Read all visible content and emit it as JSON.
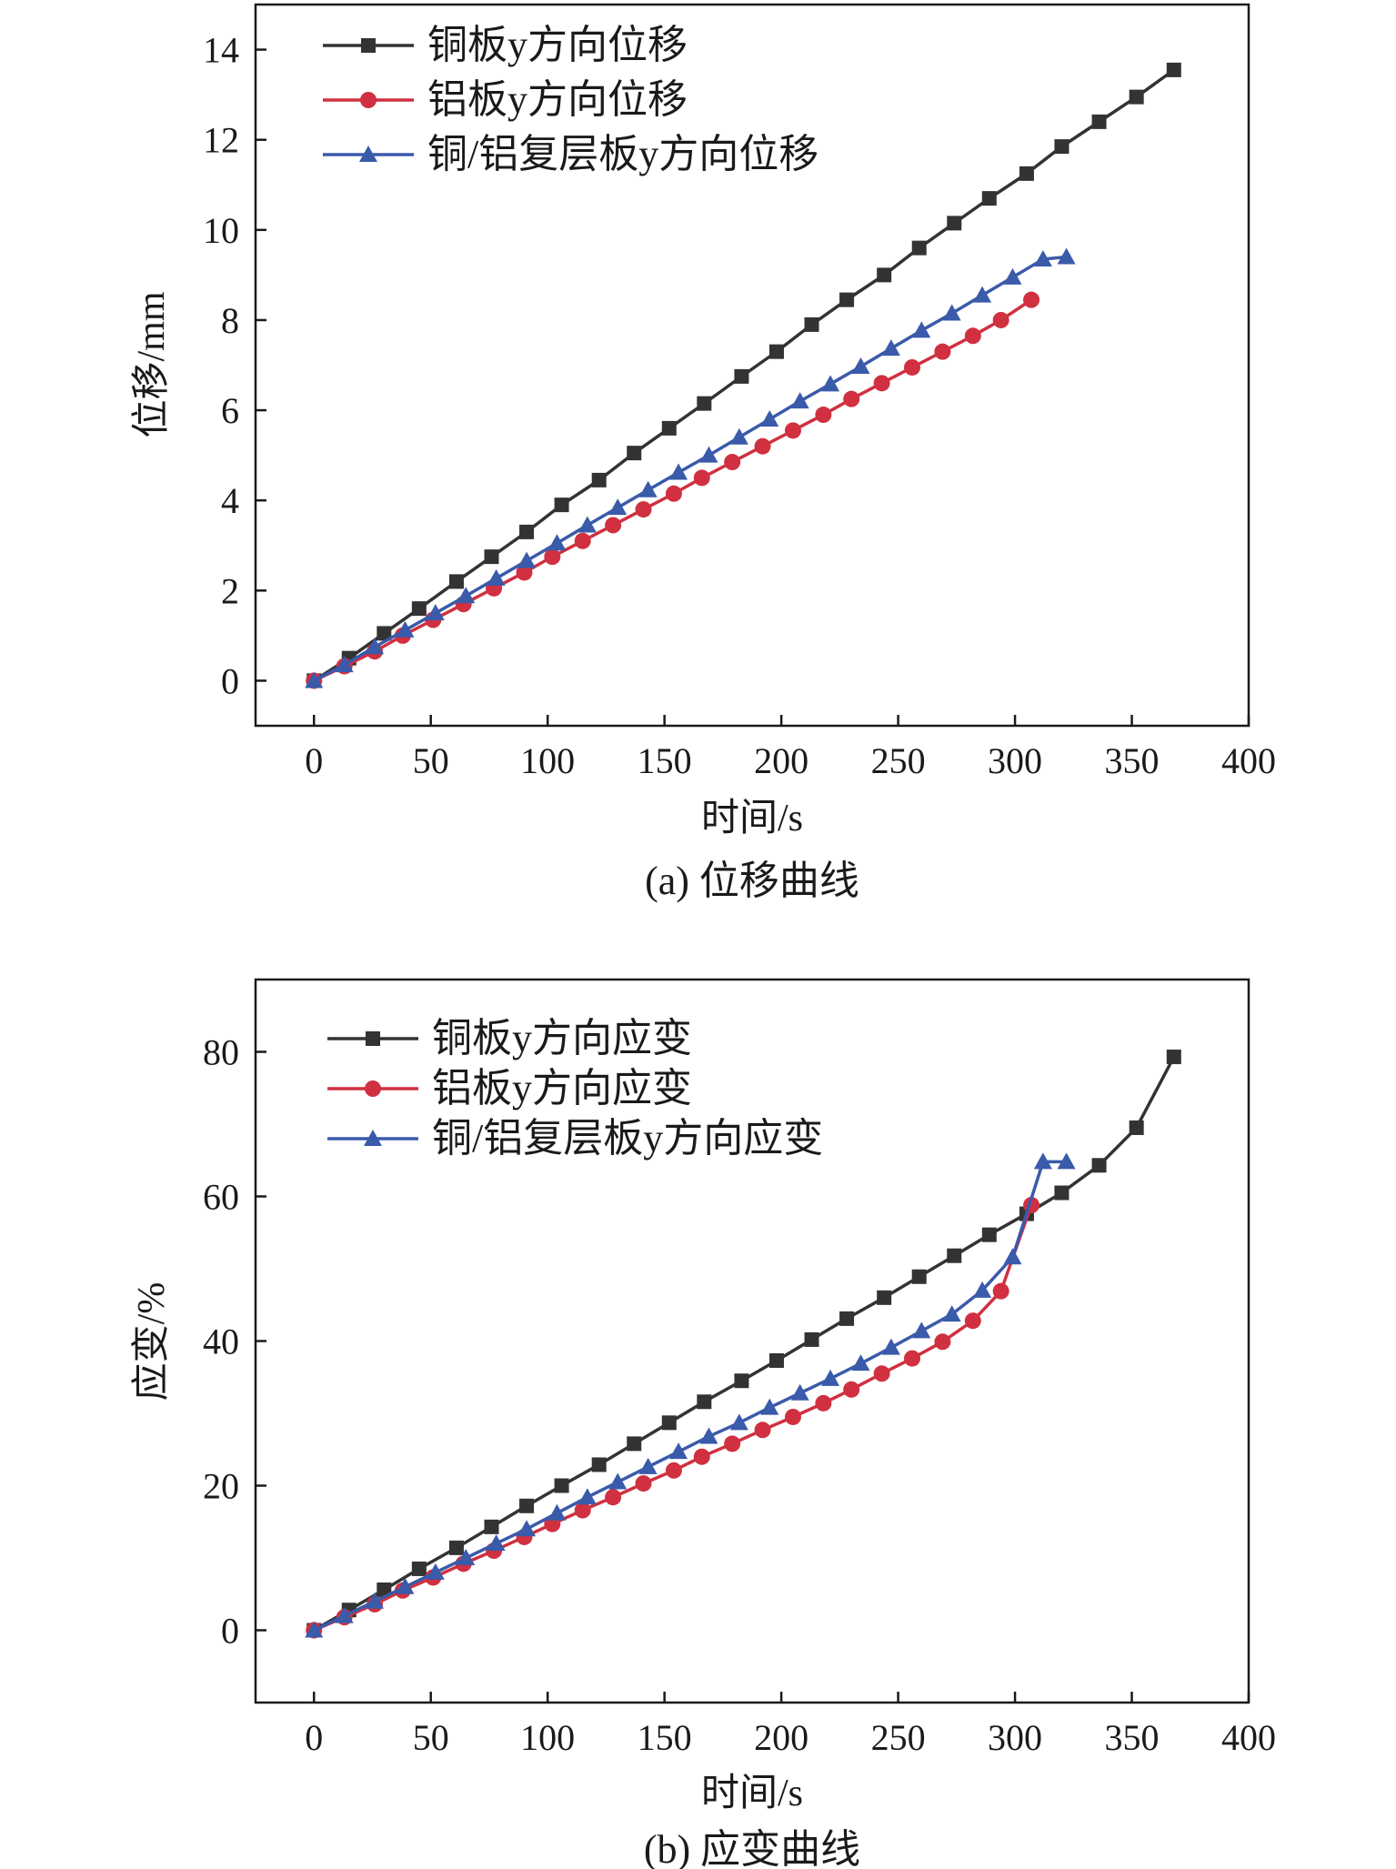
{
  "charts": [
    {
      "caption": "(a) 位移曲线",
      "chart_data": {
        "type": "line",
        "xlabel": "时间/s",
        "ylabel": "位移/mm",
        "xlim": [
          -25,
          400
        ],
        "ylim": [
          -1,
          15
        ],
        "xticks": [
          0,
          50,
          100,
          150,
          200,
          250,
          300,
          350,
          400
        ],
        "yticks": [
          0,
          2,
          4,
          6,
          8,
          10,
          12,
          14
        ],
        "grid": false,
        "legend_position": "top-left",
        "series": [
          {
            "name": "铜板y方向位移",
            "color": "#333333",
            "marker": "square",
            "x": [
              0,
              15,
              30,
              45,
              61,
              76,
              91,
              106,
              122,
              137,
              152,
              167,
              183,
              198,
              213,
              228,
              244,
              259,
              274,
              289,
              305,
              320,
              336,
              352,
              368
            ],
            "y": [
              0,
              0.5,
              1.05,
              1.6,
              2.2,
              2.75,
              3.3,
              3.9,
              4.45,
              5.05,
              5.6,
              6.15,
              6.75,
              7.3,
              7.9,
              8.45,
              9.0,
              9.6,
              10.15,
              10.7,
              11.25,
              11.85,
              12.4,
              12.95,
              13.55
            ]
          },
          {
            "name": "铝板y方向位移",
            "color": "#d03040",
            "marker": "circle",
            "x": [
              0,
              13,
              26,
              38,
              51,
              64,
              77,
              90,
              102,
              115,
              128,
              141,
              154,
              166,
              179,
              192,
              205,
              218,
              230,
              243,
              256,
              269,
              282,
              294,
              307
            ],
            "y": [
              0,
              0.32,
              0.65,
              1.0,
              1.35,
              1.7,
              2.05,
              2.4,
              2.75,
              3.1,
              3.45,
              3.8,
              4.15,
              4.5,
              4.85,
              5.2,
              5.55,
              5.9,
              6.25,
              6.6,
              6.95,
              7.3,
              7.65,
              8.0,
              8.45
            ]
          },
          {
            "name": "铜/铝复层板y方向位移",
            "color": "#3a5aaa",
            "marker": "triangle",
            "x": [
              0,
              13,
              26,
              39,
              52,
              65,
              78,
              91,
              104,
              117,
              130,
              143,
              156,
              169,
              182,
              195,
              208,
              221,
              234,
              247,
              260,
              273,
              286,
              299,
              312,
              322
            ],
            "y": [
              0,
              0.35,
              0.75,
              1.12,
              1.5,
              1.88,
              2.27,
              2.66,
              3.05,
              3.45,
              3.84,
              4.23,
              4.62,
              5.0,
              5.4,
              5.8,
              6.2,
              6.58,
              6.97,
              7.37,
              7.77,
              8.15,
              8.55,
              8.95,
              9.35,
              9.4
            ]
          }
        ]
      }
    },
    {
      "caption": "(b) 应变曲线",
      "chart_data": {
        "type": "line",
        "xlabel": "时间/s",
        "ylabel": "应变/%",
        "xlim": [
          -25,
          400
        ],
        "ylim": [
          -10,
          90
        ],
        "xticks": [
          0,
          50,
          100,
          150,
          200,
          250,
          300,
          350,
          400
        ],
        "yticks": [
          0,
          20,
          40,
          60,
          80
        ],
        "grid": false,
        "legend_position": "top-left",
        "series": [
          {
            "name": "铜板y方向应变",
            "color": "#333333",
            "marker": "square",
            "x": [
              0,
              15,
              30,
              45,
              61,
              76,
              91,
              106,
              122,
              137,
              152,
              167,
              183,
              198,
              213,
              228,
              244,
              259,
              274,
              289,
              305,
              320,
              336,
              352,
              368
            ],
            "y": [
              0,
              2.8,
              5.6,
              8.5,
              11.4,
              14.3,
              17.2,
              20.0,
              22.9,
              25.8,
              28.7,
              31.6,
              34.5,
              37.3,
              40.2,
              43.1,
              46.0,
              48.9,
              51.8,
              54.7,
              57.6,
              60.5,
              64.3,
              69.5,
              79.3
            ]
          },
          {
            "name": "铝板y方向应变",
            "color": "#d03040",
            "marker": "circle",
            "x": [
              0,
              13,
              26,
              38,
              51,
              64,
              77,
              90,
              102,
              115,
              128,
              141,
              154,
              166,
              179,
              192,
              205,
              218,
              230,
              243,
              256,
              269,
              282,
              294,
              307
            ],
            "y": [
              0,
              1.8,
              3.6,
              5.5,
              7.3,
              9.2,
              11.0,
              12.9,
              14.7,
              16.6,
              18.4,
              20.3,
              22.1,
              24.0,
              25.8,
              27.7,
              29.5,
              31.4,
              33.3,
              35.5,
              37.6,
              39.9,
              42.8,
              46.9,
              58.8
            ]
          },
          {
            "name": "铜/铝复层板y方向应变",
            "color": "#3a5aaa",
            "marker": "triangle",
            "x": [
              0,
              13,
              26,
              39,
              52,
              65,
              78,
              91,
              104,
              117,
              130,
              143,
              156,
              169,
              182,
              195,
              208,
              221,
              234,
              247,
              260,
              273,
              286,
              299,
              312,
              322
            ],
            "y": [
              0,
              2.0,
              4.0,
              6.0,
              8.0,
              10.0,
              12.0,
              14.0,
              16.2,
              18.4,
              20.5,
              22.6,
              24.7,
              26.8,
              28.7,
              30.8,
              32.8,
              34.8,
              36.9,
              39.1,
              41.4,
              43.7,
              47.0,
              51.6,
              64.8,
              64.8
            ]
          }
        ]
      }
    }
  ]
}
